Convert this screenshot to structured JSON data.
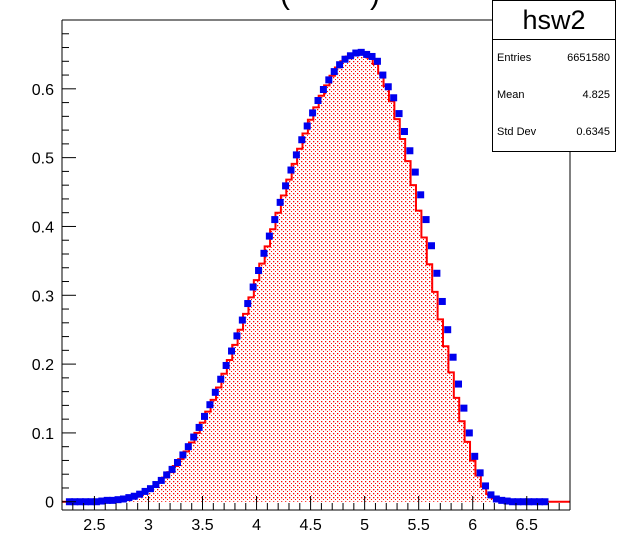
{
  "title_fragment": "(",
  "title_fragment_right": ")",
  "stats": {
    "name": "hsw2",
    "rows": [
      {
        "key": "Entries",
        "value": "6651580"
      },
      {
        "key": "Mean",
        "value": "4.825"
      },
      {
        "key": "Std Dev",
        "value": "0.6345"
      }
    ]
  },
  "chart_data": {
    "type": "histogram",
    "xlim": [
      2.2,
      6.9
    ],
    "ylim": [
      -0.012,
      0.7
    ],
    "xticks": [
      "2.5",
      "3",
      "3.5",
      "4",
      "4.5",
      "5",
      "5.5",
      "6",
      "6.5"
    ],
    "yticks": [
      "0",
      "0.1",
      "0.2",
      "0.3",
      "0.4",
      "0.5",
      "0.6"
    ],
    "colors": {
      "histogram_line": "#ff0000",
      "histogram_fill": "#ff0000",
      "markers": "#0000ee"
    },
    "series": [
      {
        "style": "filled-step",
        "x": [
          2.25,
          2.3,
          2.35,
          2.4,
          2.45,
          2.5,
          2.55,
          2.6,
          2.65,
          2.7,
          2.75,
          2.8,
          2.85,
          2.9,
          2.95,
          3.0,
          3.05,
          3.1,
          3.15,
          3.2,
          3.25,
          3.3,
          3.35,
          3.4,
          3.45,
          3.5,
          3.55,
          3.6,
          3.65,
          3.7,
          3.75,
          3.8,
          3.85,
          3.9,
          3.95,
          4.0,
          4.05,
          4.1,
          4.15,
          4.2,
          4.25,
          4.3,
          4.35,
          4.4,
          4.45,
          4.5,
          4.55,
          4.6,
          4.65,
          4.7,
          4.75,
          4.8,
          4.85,
          4.9,
          4.95,
          5.0,
          5.05,
          5.1,
          5.15,
          5.2,
          5.25,
          5.3,
          5.35,
          5.4,
          5.45,
          5.5,
          5.55,
          5.6,
          5.65,
          5.7,
          5.75,
          5.8,
          5.85,
          5.9,
          5.95,
          6.0,
          6.05,
          6.1,
          6.15,
          6.2,
          6.25,
          6.3,
          6.35,
          6.4,
          6.45,
          6.5,
          6.55,
          6.6,
          6.65
        ],
        "y": [
          0.0,
          0.0,
          0.0,
          0.0,
          0.0,
          0.0,
          0.001,
          0.001,
          0.002,
          0.002,
          0.003,
          0.005,
          0.007,
          0.01,
          0.013,
          0.017,
          0.022,
          0.028,
          0.035,
          0.043,
          0.052,
          0.062,
          0.073,
          0.086,
          0.1,
          0.115,
          0.131,
          0.148,
          0.166,
          0.186,
          0.206,
          0.228,
          0.25,
          0.273,
          0.297,
          0.322,
          0.346,
          0.371,
          0.396,
          0.42,
          0.445,
          0.468,
          0.491,
          0.513,
          0.535,
          0.555,
          0.573,
          0.59,
          0.605,
          0.619,
          0.631,
          0.64,
          0.647,
          0.651,
          0.652,
          0.651,
          0.645,
          0.636,
          0.622,
          0.604,
          0.582,
          0.556,
          0.527,
          0.495,
          0.46,
          0.423,
          0.384,
          0.345,
          0.305,
          0.265,
          0.226,
          0.188,
          0.151,
          0.117,
          0.087,
          0.06,
          0.038,
          0.022,
          0.011,
          0.005,
          0.002,
          0.001,
          0.001,
          0.0,
          0.0,
          0.0,
          0.0,
          0.0,
          0.0
        ]
      },
      {
        "style": "markers",
        "x": [
          2.25,
          2.3,
          2.35,
          2.4,
          2.45,
          2.5,
          2.55,
          2.6,
          2.65,
          2.7,
          2.75,
          2.8,
          2.85,
          2.9,
          2.95,
          3.0,
          3.05,
          3.1,
          3.15,
          3.2,
          3.25,
          3.3,
          3.35,
          3.4,
          3.45,
          3.5,
          3.55,
          3.6,
          3.65,
          3.7,
          3.75,
          3.8,
          3.85,
          3.9,
          3.95,
          4.0,
          4.05,
          4.1,
          4.15,
          4.2,
          4.25,
          4.3,
          4.35,
          4.4,
          4.45,
          4.5,
          4.55,
          4.6,
          4.65,
          4.7,
          4.75,
          4.8,
          4.85,
          4.9,
          4.95,
          5.0,
          5.05,
          5.1,
          5.15,
          5.2,
          5.25,
          5.3,
          5.35,
          5.4,
          5.45,
          5.5,
          5.55,
          5.6,
          5.65,
          5.7,
          5.75,
          5.8,
          5.85,
          5.9,
          5.95,
          6.0,
          6.05,
          6.1,
          6.15,
          6.2,
          6.25,
          6.3,
          6.35,
          6.4,
          6.45,
          6.5,
          6.55,
          6.6,
          6.65
        ],
        "y": [
          0.0,
          0.0,
          0.0,
          0.0,
          0.0,
          0.0,
          0.001,
          0.002,
          0.002,
          0.003,
          0.004,
          0.006,
          0.008,
          0.011,
          0.015,
          0.019,
          0.025,
          0.031,
          0.039,
          0.047,
          0.057,
          0.068,
          0.08,
          0.094,
          0.108,
          0.124,
          0.141,
          0.159,
          0.178,
          0.198,
          0.219,
          0.241,
          0.264,
          0.288,
          0.312,
          0.336,
          0.361,
          0.386,
          0.41,
          0.435,
          0.459,
          0.482,
          0.504,
          0.526,
          0.546,
          0.565,
          0.583,
          0.599,
          0.613,
          0.625,
          0.635,
          0.643,
          0.648,
          0.652,
          0.653,
          0.65,
          0.647,
          0.64,
          0.62,
          0.603,
          0.587,
          0.564,
          0.538,
          0.51,
          0.479,
          0.446,
          0.41,
          0.372,
          0.332,
          0.291,
          0.25,
          0.21,
          0.171,
          0.136,
          0.1,
          0.066,
          0.042,
          0.023,
          0.01,
          0.004,
          0.002,
          0.001,
          0.0,
          0.0,
          0.0,
          0.0,
          0.0,
          0.0,
          0.0
        ]
      }
    ]
  }
}
